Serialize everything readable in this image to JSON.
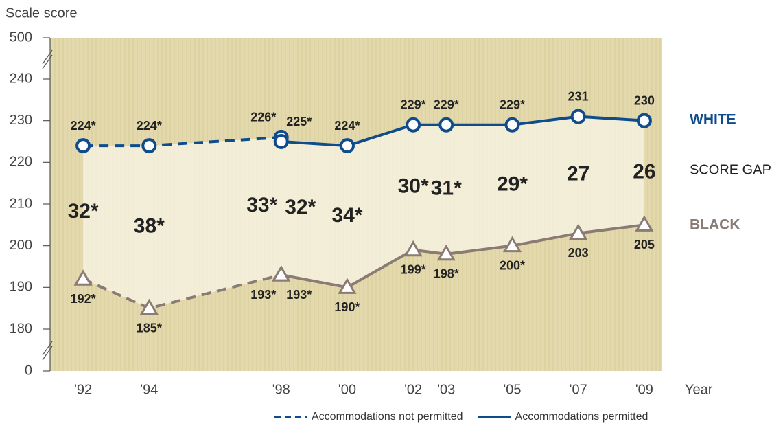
{
  "chart_data": {
    "type": "line",
    "y_axis_label": "Scale score",
    "x_axis_label": "Year",
    "xlim": [
      1991,
      2010
    ],
    "xticks": [
      {
        "value": 1992,
        "label": "'92"
      },
      {
        "value": 1994,
        "label": "'94"
      },
      {
        "value": 1998,
        "label": "'98"
      },
      {
        "value": 2000,
        "label": "'00"
      },
      {
        "value": 2002,
        "label": "'02"
      },
      {
        "value": 2003,
        "label": "'03"
      },
      {
        "value": 2005,
        "label": "'05"
      },
      {
        "value": 2007,
        "label": "'07"
      },
      {
        "value": 2009,
        "label": "'09"
      }
    ],
    "ylim": [
      180,
      240
    ],
    "yticks": [
      0,
      180,
      190,
      200,
      210,
      220,
      230,
      240,
      500
    ],
    "axis_break": true,
    "legend": [
      {
        "label": "Accommodations not permitted",
        "dashed": true
      },
      {
        "label": "Accommodations permitted",
        "dashed": false
      }
    ],
    "groups": [
      {
        "name": "WHITE",
        "color": "#0f4c8c",
        "marker": "circle",
        "label_side": "above",
        "lines": [
          {
            "x": [
              1992,
              1994,
              1998
            ],
            "values": [
              224,
              224,
              226
            ],
            "value_labels": [
              "224*",
              "224*",
              "226*"
            ]
          },
          {
            "x": [
              1998,
              2000,
              2002,
              2003,
              2005,
              2007,
              2009
            ],
            "values": [
              225,
              224,
              229,
              229,
              229,
              231,
              230
            ],
            "value_labels": [
              "225*",
              "224*",
              "229*",
              "229*",
              "229*",
              "231",
              "230"
            ]
          }
        ]
      },
      {
        "name": "BLACK",
        "color": "#8a7b74",
        "marker": "triangle",
        "label_side": "below",
        "lines": [
          {
            "x": [
              1992,
              1994,
              1998
            ],
            "values": [
              192,
              185,
              193
            ],
            "value_labels": [
              "192*",
              "185*",
              "193*"
            ]
          },
          {
            "x": [
              1998,
              2000,
              2002,
              2003,
              2005,
              2007,
              2009
            ],
            "values": [
              193,
              190,
              199,
              198,
              200,
              203,
              205
            ],
            "value_labels": [
              "193*",
              "190*",
              "199*",
              "198*",
              "200*",
              "203",
              "205"
            ]
          }
        ]
      }
    ],
    "gap": {
      "name": "SCORE GAP",
      "values": [
        32,
        38,
        33,
        32,
        34,
        30,
        31,
        29,
        27,
        26
      ],
      "value_labels": [
        "32*",
        "38*",
        "33*",
        "32*",
        "34*",
        "30*",
        "31*",
        "29*",
        "27",
        "26"
      ]
    }
  }
}
